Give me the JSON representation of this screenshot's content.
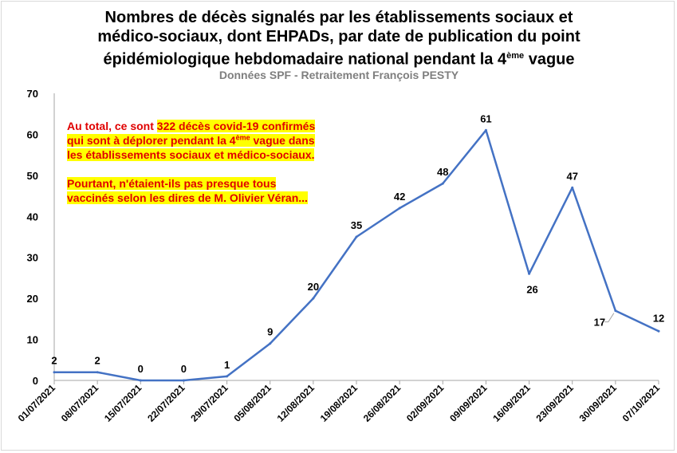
{
  "title": {
    "line1": "Nombres de décès signalés par les établissements sociaux et",
    "line2": "médico-sociaux, dont EHPADs, par date de publication du point",
    "line3_before": "épidémiologique hebdomadaire national pendant la 4",
    "line3_sup": "ème",
    "line3_after": " vague"
  },
  "subtitle": "Données SPF - Retraitement François PESTY",
  "annotations": {
    "a1_before": "Au total, ce sont ",
    "a1_hl1": "322 décès covid-19 confirmés",
    "a1_hl2a": "qui sont à déplorer pendant la 4",
    "a1_sup": "ème",
    "a1_hl2b": " vague dans",
    "a1_hl3": "les établissements sociaux et médico-sociaux.",
    "a2_hl1": "Pourtant, n'étaient-ils pas presque tous",
    "a2_hl2": " vaccinés selon les dires de M. Olivier Véran..."
  },
  "chart_data": {
    "type": "line",
    "categories": [
      "01/07/2021",
      "08/07/2021",
      "15/07/2021",
      "22/07/2021",
      "29/07/2021",
      "05/08/2021",
      "12/08/2021",
      "19/08/2021",
      "26/08/2021",
      "02/09/2021",
      "09/09/2021",
      "16/09/2021",
      "23/09/2021",
      "30/09/2021",
      "07/10/2021"
    ],
    "series": [
      {
        "values": [
          2,
          2,
          0,
          0,
          1,
          9,
          20,
          35,
          42,
          48,
          61,
          26,
          47,
          17,
          12
        ]
      }
    ],
    "data_labels": [
      "2",
      "2",
      "0",
      "0",
      "1",
      "9",
      "20",
      "35",
      "42",
      "48",
      "61",
      "26",
      "47",
      "17",
      "12"
    ],
    "ylim": [
      0,
      70
    ],
    "yticks": [
      0,
      10,
      20,
      30,
      40,
      50,
      60,
      70
    ],
    "grid": false,
    "legend": "none",
    "line_color": "#4472c4"
  }
}
